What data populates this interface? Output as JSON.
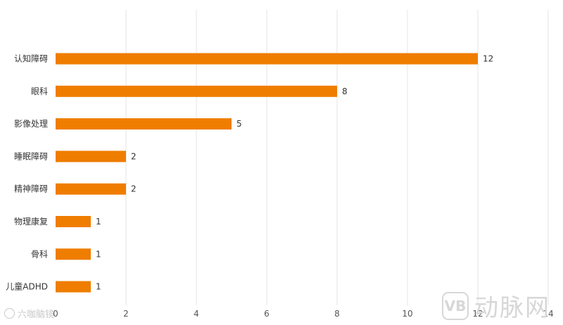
{
  "chart_data": {
    "type": "bar",
    "orientation": "horizontal",
    "categories": [
      "认知障碍",
      "眼科",
      "影像处理",
      "睡眠障碍",
      "精神障碍",
      "物理康复",
      "骨科",
      "儿童ADHD"
    ],
    "values": [
      12,
      8,
      5,
      2,
      2,
      1,
      1,
      1
    ],
    "xlim": [
      0,
      14
    ],
    "xticks": [
      0,
      2,
      4,
      6,
      8,
      10,
      12,
      14
    ],
    "grid": "vertical",
    "legend": "none",
    "bar_color": "#ef7d00",
    "gridline_color": "#e6e6e6"
  },
  "watermarks": {
    "left_text": "六咖脑镜",
    "right_badge": "VB",
    "right_text": "动脉网"
  }
}
